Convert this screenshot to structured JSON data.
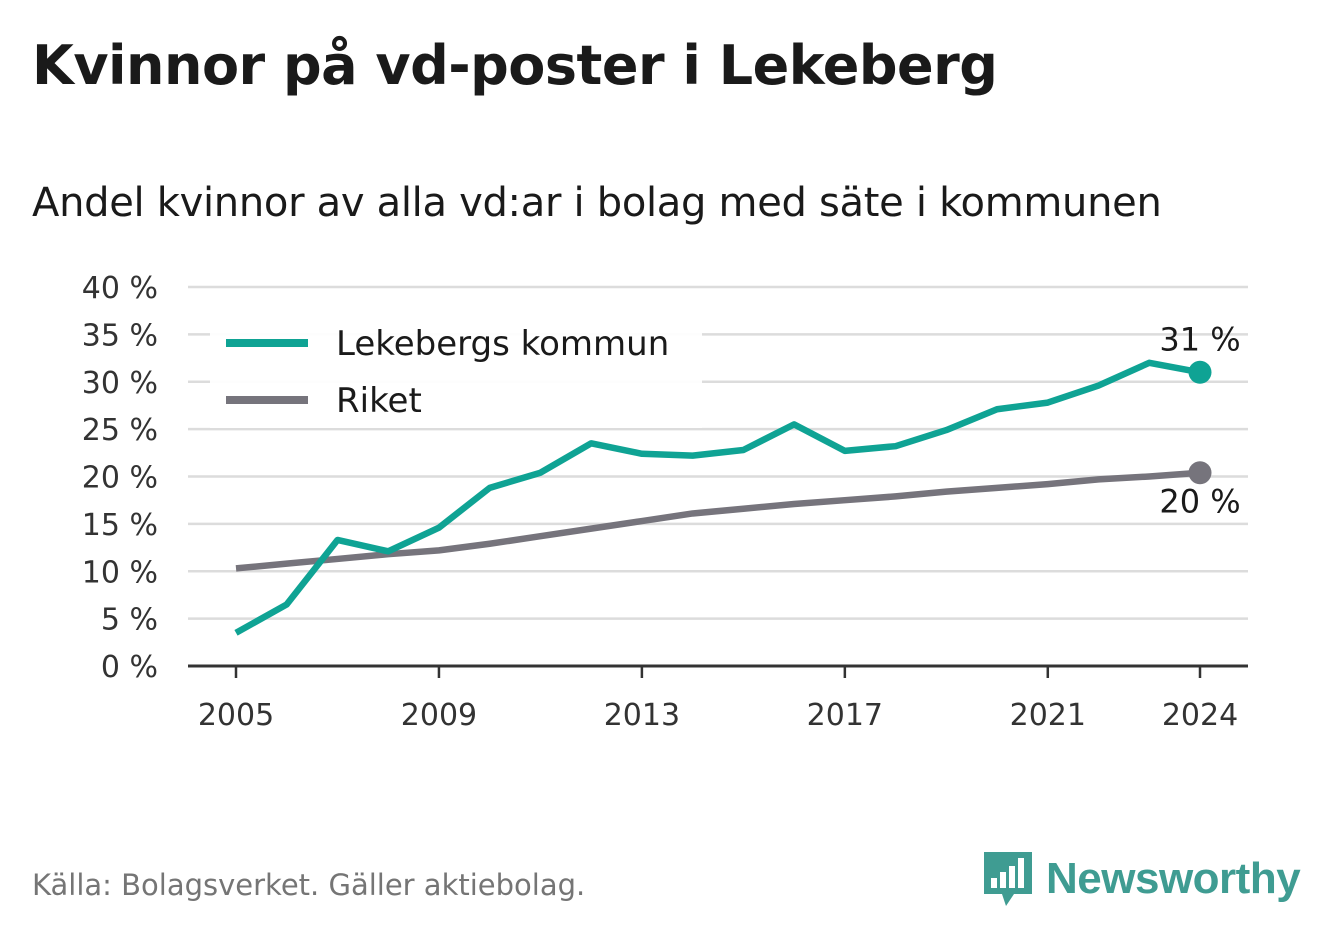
{
  "title": "Kvinnor på vd-poster i Lekeberg",
  "subtitle": "Andel kvinnor av alla vd:ar i bolag med säte i kommunen",
  "source": "Källa: Bolagsverket. Gäller aktiebolag.",
  "brand": {
    "name": "Newsworthy",
    "color": "#3f9c92",
    "icon": "bar-chart-speech-bubble-icon"
  },
  "chart_data": {
    "type": "line",
    "x": [
      2005,
      2006,
      2007,
      2008,
      2009,
      2010,
      2011,
      2012,
      2013,
      2014,
      2015,
      2016,
      2017,
      2018,
      2019,
      2020,
      2021,
      2022,
      2023,
      2024
    ],
    "series": [
      {
        "name": "Lekebergs kommun",
        "color": "#0fa394",
        "values": [
          3.5,
          6.5,
          13.3,
          12.1,
          14.6,
          18.8,
          20.4,
          23.5,
          22.4,
          22.2,
          22.8,
          25.5,
          22.7,
          23.2,
          24.9,
          27.1,
          27.8,
          29.6,
          32.0,
          31.0
        ]
      },
      {
        "name": "Riket",
        "color": "#76747c",
        "values": [
          10.3,
          10.8,
          11.3,
          11.8,
          12.2,
          12.9,
          13.7,
          14.5,
          15.3,
          16.1,
          16.6,
          17.1,
          17.5,
          17.9,
          18.4,
          18.8,
          19.2,
          19.7,
          20.0,
          20.4
        ]
      }
    ],
    "end_labels": [
      "31 %",
      "20 %"
    ],
    "x_ticks": [
      2005,
      2009,
      2013,
      2017,
      2021,
      2024
    ],
    "y_ticks": [
      0,
      5,
      10,
      15,
      20,
      25,
      30,
      35,
      40
    ],
    "y_tick_suffix": " %",
    "ylim": [
      0,
      40
    ],
    "xlim": [
      2005,
      2024
    ],
    "grid": true,
    "legend_position": "top-left",
    "xlabel": "",
    "ylabel": ""
  }
}
